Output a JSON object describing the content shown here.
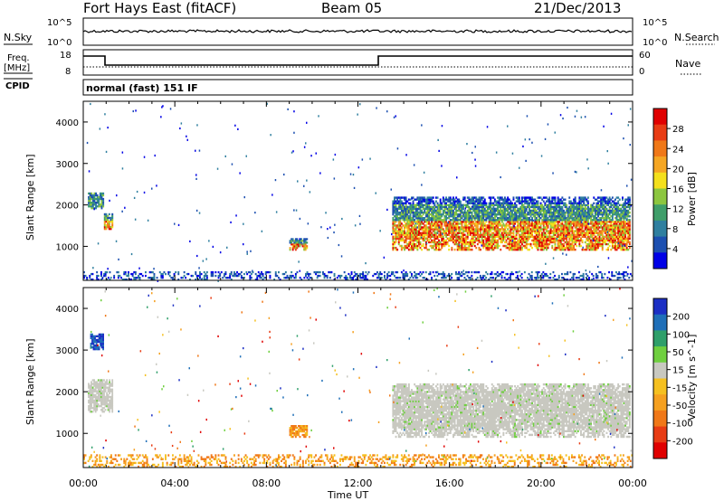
{
  "header": {
    "station": "Fort Hays East (fitACF)",
    "beam": "Beam 05",
    "date": "21/Dec/2013"
  },
  "strip": {
    "nsky_label": "N.Sky",
    "nsearch_label": "N.Search",
    "nsky_ticks": [
      "10^5",
      "10^0"
    ],
    "nsearch_ticks": [
      "10^5",
      "10^0"
    ],
    "freq_label": "Freq.",
    "freq_unit": "[MHz]",
    "freq_ticks": [
      "18",
      "8"
    ],
    "nave_label": "Nave",
    "nave_ticks": [
      "60",
      "0"
    ],
    "cpid_label": "CPID",
    "cpid_text": "normal (fast) 151 IF"
  },
  "chart_data": [
    {
      "type": "heatmap",
      "title": "",
      "xlabel": "",
      "ylabel": "Slant Range [km]",
      "x_ticks": [
        "00:00",
        "04:00",
        "08:00",
        "12:00",
        "16:00",
        "20:00",
        "00:00"
      ],
      "xlim_hours": [
        0,
        24
      ],
      "ylim_km": [
        180,
        4500
      ],
      "y_ticks": [
        1000,
        2000,
        3000,
        4000
      ],
      "colorbar": {
        "label": "Power [dB]",
        "ticks": [
          "4",
          "8",
          "12",
          "16",
          "20",
          "24",
          "28"
        ],
        "colors": [
          "#0000e6",
          "#1c4fb0",
          "#2f7f9f",
          "#3f9e6a",
          "#8cc63f",
          "#f4e01c",
          "#f5a623",
          "#f07818",
          "#e83c14",
          "#e00000"
        ]
      },
      "regions": [
        {
          "name": "early patch",
          "t": [
            0.2,
            0.9
          ],
          "km": [
            1900,
            2300
          ],
          "level": "mid"
        },
        {
          "name": "early low",
          "t": [
            0.9,
            1.3
          ],
          "km": [
            1400,
            1800
          ],
          "level": "high"
        },
        {
          "name": "evening patch",
          "t": [
            9.0,
            9.8
          ],
          "km": [
            900,
            1200
          ],
          "level": "high"
        },
        {
          "name": "main band",
          "t": [
            13.5,
            23.9
          ],
          "km": [
            900,
            2200
          ],
          "level": "high"
        },
        {
          "name": "near-range clutter",
          "t": [
            0,
            24
          ],
          "km": [
            180,
            400
          ],
          "level": "low"
        }
      ]
    },
    {
      "type": "heatmap",
      "title": "",
      "xlabel": "Time UT",
      "ylabel": "Slant Range [km]",
      "x_ticks": [
        "00:00",
        "04:00",
        "08:00",
        "12:00",
        "16:00",
        "20:00",
        "00:00"
      ],
      "xlim_hours": [
        0,
        24
      ],
      "ylim_km": [
        180,
        4500
      ],
      "y_ticks": [
        1000,
        2000,
        3000,
        4000
      ],
      "colorbar": {
        "label": "Velocity [m s^-1]",
        "ticks": [
          "200",
          "100",
          "50",
          "15",
          "-15",
          "-50",
          "-100",
          "-200"
        ],
        "colors": [
          "#1c2fc4",
          "#1f6fb8",
          "#2f9f6a",
          "#6fcf3f",
          "#c8c8c0",
          "#f5c020",
          "#f5a020",
          "#f07818",
          "#e83c14",
          "#e00000"
        ]
      },
      "regions": [
        {
          "name": "early blue",
          "t": [
            0.3,
            0.9
          ],
          "km": [
            3000,
            3400
          ],
          "level": "positive"
        },
        {
          "name": "early grey",
          "t": [
            0.2,
            1.3
          ],
          "km": [
            1500,
            2300
          ],
          "level": "ground"
        },
        {
          "name": "evening orange",
          "t": [
            9.0,
            9.8
          ],
          "km": [
            900,
            1200
          ],
          "level": "negative"
        },
        {
          "name": "main grey band",
          "t": [
            13.5,
            23.9
          ],
          "km": [
            900,
            2200
          ],
          "level": "ground"
        },
        {
          "name": "near-range orange",
          "t": [
            0,
            24
          ],
          "km": [
            180,
            500
          ],
          "level": "negative"
        }
      ]
    }
  ]
}
